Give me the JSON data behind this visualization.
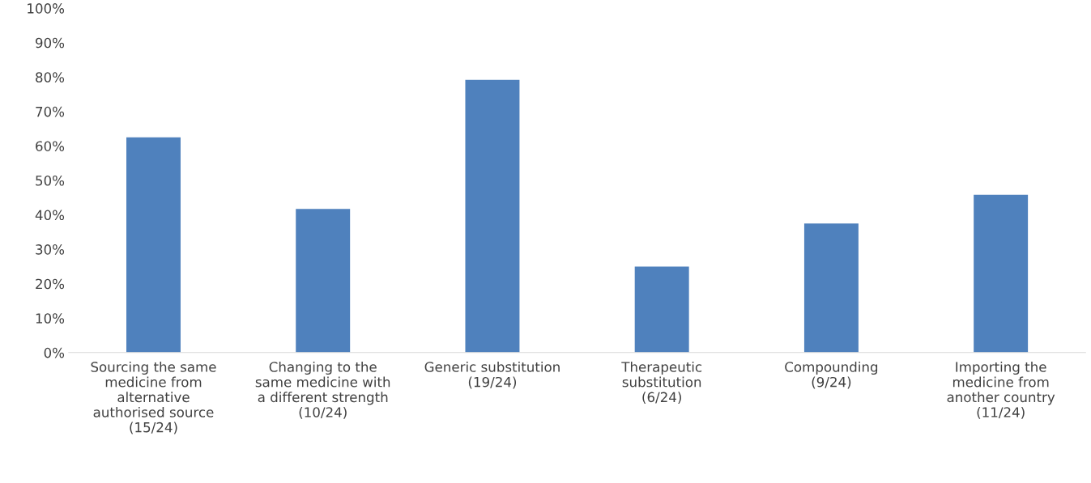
{
  "chart_data": {
    "type": "bar",
    "categories": [
      "Sourcing the same\nmedicine from\nalternative\nauthorised source\n(15/24)",
      "Changing to the\nsame medicine with\na different strength\n(10/24)",
      "Generic substitution\n(19/24)",
      "Therapeutic\nsubstitution\n(6/24)",
      "Compounding\n(9/24)",
      "Importing the\nmedicine from\nanother country\n(11/24)"
    ],
    "values": [
      62.5,
      41.7,
      79.2,
      25,
      37.5,
      45.8
    ],
    "color": "#4f81bd",
    "ylim": [
      0,
      100
    ],
    "yticks": [
      {
        "value": 0,
        "label": "0%"
      },
      {
        "value": 10,
        "label": "10%"
      },
      {
        "value": 20,
        "label": "20%"
      },
      {
        "value": 30,
        "label": "30%"
      },
      {
        "value": 40,
        "label": "40%"
      },
      {
        "value": 50,
        "label": "50%"
      },
      {
        "value": 60,
        "label": "60%"
      },
      {
        "value": 70,
        "label": "70%"
      },
      {
        "value": 80,
        "label": "80%"
      },
      {
        "value": 90,
        "label": "90%"
      },
      {
        "value": 100,
        "label": "100%"
      }
    ],
    "grid": false,
    "legend": false
  }
}
